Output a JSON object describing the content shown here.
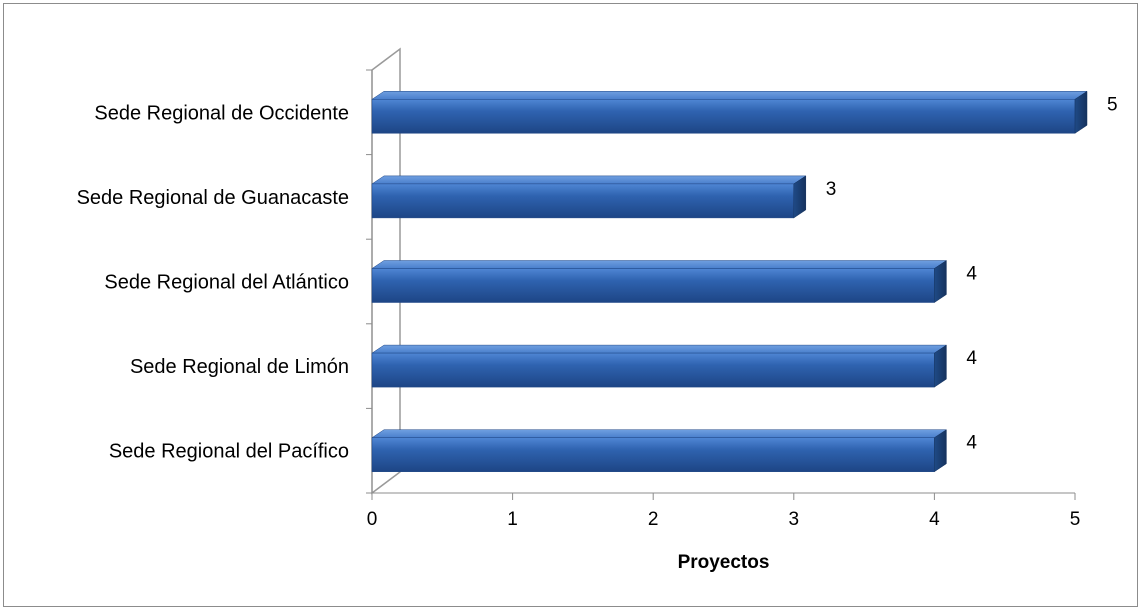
{
  "chart_data": {
    "type": "bar",
    "orientation": "horizontal",
    "style": "3d",
    "categories": [
      "Sede Regional del Pacífico",
      "Sede Regional de Limón",
      "Sede Regional del Atlántico",
      "Sede Regional de Guanacaste",
      "Sede Regional de Occidente"
    ],
    "values": [
      4,
      4,
      4,
      3,
      5
    ],
    "value_labels": [
      "4",
      "4",
      "4",
      "3",
      "5"
    ],
    "title": "",
    "xlabel": "Proyectos",
    "ylabel": "",
    "xlim": [
      0,
      5
    ],
    "x_ticks": [
      "0",
      "1",
      "2",
      "3",
      "4",
      "5"
    ],
    "grid": false,
    "legend": "none",
    "bar_color": "#2c5fa8",
    "bar_top_color": "#4a7fcc",
    "bar_side_color": "#1c3f73"
  }
}
